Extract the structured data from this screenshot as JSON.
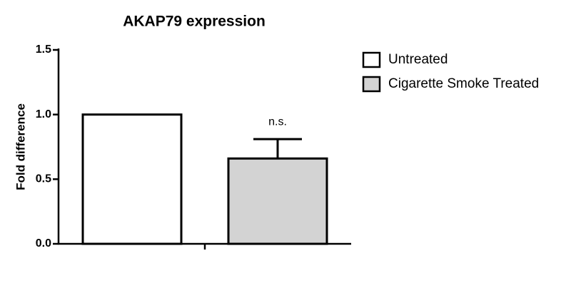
{
  "chart_data": {
    "type": "bar",
    "title": "AKAP79 expression",
    "y_label": "Fold difference",
    "categories": [
      null
    ],
    "series": [
      {
        "name": "Untreated",
        "color": "#ffffff",
        "values": [
          1.0
        ]
      },
      {
        "name": "Cigarette Smoke Treated",
        "color": "#d3d3d3",
        "values": [
          0.66
        ],
        "errors": [
          0.15
        ],
        "annotations": [
          "n.s."
        ]
      }
    ],
    "ylim": [
      0,
      1.5
    ],
    "yticks": [
      {
        "value": 0,
        "label": "0.0"
      },
      0.5,
      {
        "value": 1,
        "label": "1.0"
      },
      1.5
    ],
    "grid": false,
    "legend": "upper right"
  }
}
